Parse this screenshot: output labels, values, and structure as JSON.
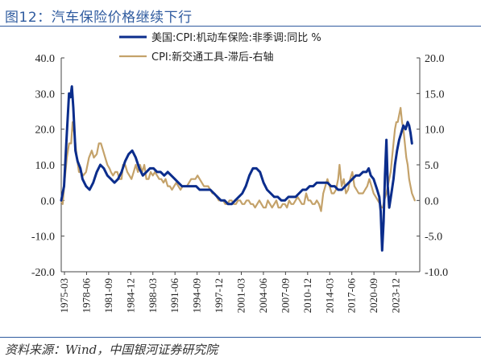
{
  "header": {
    "title": "图12：汽车保险价格继续下行"
  },
  "footer": {
    "source": "资料来源：Wind，中国银河证券研究院"
  },
  "colors": {
    "series1": "#0b2d8c",
    "series2": "#c4a26a",
    "accent": "#2f5b9f"
  },
  "chart_data": {
    "type": "line",
    "x_tick_labels": [
      "1975-03",
      "1978-06",
      "1981-09",
      "1984-12",
      "1988-03",
      "1991-06",
      "1994-09",
      "1997-12",
      "2001-03",
      "2004-06",
      "2007-09",
      "2010-12",
      "2014-03",
      "2017-06",
      "2020-09",
      "2023-12"
    ],
    "x_range": [
      1975.0,
      2025.5
    ],
    "y_left": {
      "range": [
        -20,
        40
      ],
      "ticks": [
        -20,
        -10,
        0,
        10,
        20,
        30,
        40
      ],
      "tick_labels": [
        "-20.0",
        "-10.0",
        "0.0",
        "10.0",
        "20.0",
        "30.0",
        "40.0"
      ]
    },
    "y_right": {
      "range": [
        -10,
        20
      ],
      "ticks": [
        -10,
        -5,
        0,
        5,
        10,
        15,
        20
      ],
      "tick_labels": [
        "-10.0",
        "-5.0",
        "0.0",
        "5.0",
        "10.0",
        "15.0",
        "20.0"
      ]
    },
    "grid": false,
    "legend_position": "top",
    "series": [
      {
        "name": "美国:CPI:机动车保险:非季调:同比 %",
        "axis": "left",
        "points": [
          [
            1975.0,
            0
          ],
          [
            1975.4,
            4
          ],
          [
            1975.8,
            19
          ],
          [
            1976.1,
            30
          ],
          [
            1976.3,
            29
          ],
          [
            1976.5,
            32
          ],
          [
            1976.7,
            26
          ],
          [
            1977.0,
            14
          ],
          [
            1977.3,
            11
          ],
          [
            1977.7,
            9
          ],
          [
            1978.0,
            6
          ],
          [
            1978.5,
            4
          ],
          [
            1979.0,
            3
          ],
          [
            1979.5,
            5
          ],
          [
            1980.0,
            8
          ],
          [
            1980.5,
            10
          ],
          [
            1981.0,
            9
          ],
          [
            1981.5,
            7
          ],
          [
            1982.0,
            6
          ],
          [
            1982.5,
            5
          ],
          [
            1983.0,
            6
          ],
          [
            1983.5,
            8
          ],
          [
            1984.0,
            11
          ],
          [
            1984.5,
            13
          ],
          [
            1985.0,
            14
          ],
          [
            1985.5,
            12
          ],
          [
            1986.0,
            9
          ],
          [
            1986.5,
            7
          ],
          [
            1987.0,
            8
          ],
          [
            1987.5,
            9
          ],
          [
            1988.0,
            9
          ],
          [
            1988.5,
            8
          ],
          [
            1989.0,
            8
          ],
          [
            1989.5,
            7
          ],
          [
            1990.0,
            8
          ],
          [
            1990.5,
            7
          ],
          [
            1991.0,
            6
          ],
          [
            1991.5,
            5
          ],
          [
            1992.0,
            4
          ],
          [
            1992.5,
            4
          ],
          [
            1993.0,
            4
          ],
          [
            1993.5,
            4
          ],
          [
            1994.0,
            4
          ],
          [
            1994.5,
            3
          ],
          [
            1995.0,
            3
          ],
          [
            1995.5,
            3
          ],
          [
            1996.0,
            3
          ],
          [
            1996.5,
            2
          ],
          [
            1997.0,
            1
          ],
          [
            1997.5,
            0
          ],
          [
            1998.0,
            0
          ],
          [
            1998.5,
            -1
          ],
          [
            1999.0,
            -1
          ],
          [
            1999.5,
            0
          ],
          [
            2000.0,
            1
          ],
          [
            2000.5,
            2
          ],
          [
            2001.0,
            4
          ],
          [
            2001.5,
            7
          ],
          [
            2002.0,
            9
          ],
          [
            2002.5,
            9
          ],
          [
            2003.0,
            8
          ],
          [
            2003.5,
            5
          ],
          [
            2004.0,
            3
          ],
          [
            2004.5,
            2
          ],
          [
            2005.0,
            1
          ],
          [
            2005.5,
            1
          ],
          [
            2006.0,
            0
          ],
          [
            2006.5,
            0
          ],
          [
            2007.0,
            1
          ],
          [
            2007.5,
            1
          ],
          [
            2008.0,
            1
          ],
          [
            2008.5,
            2
          ],
          [
            2009.0,
            3
          ],
          [
            2009.5,
            3
          ],
          [
            2010.0,
            4
          ],
          [
            2010.5,
            4
          ],
          [
            2011.0,
            5
          ],
          [
            2011.5,
            5
          ],
          [
            2012.0,
            5
          ],
          [
            2012.5,
            5
          ],
          [
            2013.0,
            4
          ],
          [
            2013.5,
            4
          ],
          [
            2014.0,
            3
          ],
          [
            2014.5,
            3
          ],
          [
            2015.0,
            4
          ],
          [
            2015.5,
            5
          ],
          [
            2016.0,
            6
          ],
          [
            2016.5,
            7
          ],
          [
            2017.0,
            7
          ],
          [
            2017.5,
            8
          ],
          [
            2018.0,
            8
          ],
          [
            2018.3,
            9
          ],
          [
            2018.6,
            7
          ],
          [
            2019.0,
            6
          ],
          [
            2019.5,
            3
          ],
          [
            2019.8,
            1
          ],
          [
            2020.0,
            -3
          ],
          [
            2020.2,
            -14
          ],
          [
            2020.4,
            -6
          ],
          [
            2020.6,
            7
          ],
          [
            2020.8,
            17
          ],
          [
            2021.0,
            4
          ],
          [
            2021.2,
            -2
          ],
          [
            2021.5,
            2
          ],
          [
            2021.8,
            6
          ],
          [
            2022.0,
            10
          ],
          [
            2022.3,
            14
          ],
          [
            2022.6,
            17
          ],
          [
            2022.9,
            19
          ],
          [
            2023.2,
            21
          ],
          [
            2023.5,
            20
          ],
          [
            2023.8,
            22
          ],
          [
            2024.0,
            21
          ],
          [
            2024.2,
            19
          ],
          [
            2024.4,
            16
          ]
        ]
      },
      {
        "name": "CPI:新交通工具-滞后-右轴",
        "axis": "right",
        "points": [
          [
            1975.0,
            0
          ],
          [
            1975.2,
            -0.5
          ],
          [
            1975.5,
            3
          ],
          [
            1975.8,
            6
          ],
          [
            1976.1,
            8
          ],
          [
            1976.4,
            8
          ],
          [
            1976.6,
            11
          ],
          [
            1976.9,
            9
          ],
          [
            1977.2,
            6
          ],
          [
            1977.5,
            4
          ],
          [
            1977.8,
            4
          ],
          [
            1978.1,
            3.5
          ],
          [
            1978.5,
            4
          ],
          [
            1978.9,
            6
          ],
          [
            1979.3,
            7
          ],
          [
            1979.6,
            6
          ],
          [
            1980.0,
            6.5
          ],
          [
            1980.3,
            8
          ],
          [
            1980.6,
            8
          ],
          [
            1980.9,
            7
          ],
          [
            1981.2,
            6
          ],
          [
            1981.5,
            5
          ],
          [
            1981.8,
            4.5
          ],
          [
            1982.0,
            4
          ],
          [
            1982.3,
            3.5
          ],
          [
            1982.6,
            4
          ],
          [
            1982.9,
            4
          ],
          [
            1983.2,
            3
          ],
          [
            1983.5,
            3
          ],
          [
            1983.7,
            5
          ],
          [
            1984.0,
            5
          ],
          [
            1984.3,
            4
          ],
          [
            1984.6,
            3.5
          ],
          [
            1984.9,
            3
          ],
          [
            1985.2,
            4
          ],
          [
            1985.5,
            5
          ],
          [
            1985.8,
            4
          ],
          [
            1986.1,
            5
          ],
          [
            1986.4,
            4
          ],
          [
            1986.7,
            5
          ],
          [
            1987.0,
            3
          ],
          [
            1987.3,
            3
          ],
          [
            1987.6,
            4
          ],
          [
            1987.9,
            3.5
          ],
          [
            1988.2,
            4
          ],
          [
            1988.5,
            3.5
          ],
          [
            1988.8,
            3
          ],
          [
            1989.1,
            3
          ],
          [
            1989.4,
            2.5
          ],
          [
            1989.7,
            3
          ],
          [
            1990.0,
            2
          ],
          [
            1990.3,
            2
          ],
          [
            1990.6,
            1.5
          ],
          [
            1990.9,
            2
          ],
          [
            1991.2,
            2.5
          ],
          [
            1991.5,
            2
          ],
          [
            1991.8,
            1.5
          ],
          [
            1992.1,
            2
          ],
          [
            1992.4,
            2
          ],
          [
            1992.7,
            2
          ],
          [
            1993.0,
            2.5
          ],
          [
            1993.3,
            3
          ],
          [
            1993.6,
            3
          ],
          [
            1993.9,
            3
          ],
          [
            1994.2,
            3.5
          ],
          [
            1994.5,
            3
          ],
          [
            1994.8,
            2.5
          ],
          [
            1995.1,
            2
          ],
          [
            1995.4,
            2
          ],
          [
            1995.7,
            2
          ],
          [
            1996.0,
            1.5
          ],
          [
            1996.3,
            1
          ],
          [
            1996.6,
            1
          ],
          [
            1996.9,
            0.5
          ],
          [
            1997.2,
            0
          ],
          [
            1997.5,
            0
          ],
          [
            1997.8,
            0
          ],
          [
            1998.1,
            -0.5
          ],
          [
            1998.4,
            -0.5
          ],
          [
            1998.7,
            0
          ],
          [
            1999.0,
            0
          ],
          [
            1999.3,
            -0.5
          ],
          [
            1999.6,
            -0.5
          ],
          [
            1999.9,
            0
          ],
          [
            2000.2,
            0
          ],
          [
            2000.5,
            -0.5
          ],
          [
            2000.8,
            -0.5
          ],
          [
            2001.1,
            0
          ],
          [
            2001.4,
            0
          ],
          [
            2001.7,
            -0.5
          ],
          [
            2002.0,
            -0.5
          ],
          [
            2002.3,
            -1
          ],
          [
            2002.6,
            -0.5
          ],
          [
            2002.9,
            0
          ],
          [
            2003.2,
            -0.5
          ],
          [
            2003.5,
            -1
          ],
          [
            2003.8,
            -1
          ],
          [
            2004.1,
            0
          ],
          [
            2004.4,
            -0.5
          ],
          [
            2004.7,
            -1
          ],
          [
            2005.0,
            -0.5
          ],
          [
            2005.3,
            0
          ],
          [
            2005.6,
            -1
          ],
          [
            2005.9,
            -1
          ],
          [
            2006.2,
            -0.5
          ],
          [
            2006.5,
            -0.5
          ],
          [
            2006.8,
            -1
          ],
          [
            2007.1,
            0
          ],
          [
            2007.4,
            -0.5
          ],
          [
            2007.7,
            -0.5
          ],
          [
            2008.0,
            0
          ],
          [
            2008.3,
            0.5
          ],
          [
            2008.6,
            0
          ],
          [
            2008.9,
            -0.5
          ],
          [
            2009.2,
            -0.5
          ],
          [
            2009.5,
            1
          ],
          [
            2009.8,
            0
          ],
          [
            2010.1,
            0
          ],
          [
            2010.4,
            -0.5
          ],
          [
            2010.7,
            -0.5
          ],
          [
            2011.0,
            0
          ],
          [
            2011.3,
            -0.5
          ],
          [
            2011.6,
            -1.5
          ],
          [
            2011.9,
            1
          ],
          [
            2012.2,
            2
          ],
          [
            2012.5,
            3
          ],
          [
            2012.8,
            2
          ],
          [
            2013.1,
            1
          ],
          [
            2013.4,
            1
          ],
          [
            2013.7,
            1.5
          ],
          [
            2014.0,
            3
          ],
          [
            2014.2,
            5
          ],
          [
            2014.5,
            2
          ],
          [
            2014.8,
            3
          ],
          [
            2015.1,
            1
          ],
          [
            2015.4,
            1.5
          ],
          [
            2015.7,
            3
          ],
          [
            2016.0,
            4
          ],
          [
            2016.3,
            2
          ],
          [
            2016.6,
            1.5
          ],
          [
            2016.9,
            1
          ],
          [
            2017.2,
            1
          ],
          [
            2017.5,
            1
          ],
          [
            2017.8,
            1.5
          ],
          [
            2018.1,
            2
          ],
          [
            2018.4,
            3
          ],
          [
            2018.7,
            2
          ],
          [
            2019.0,
            1
          ],
          [
            2019.3,
            0.5
          ],
          [
            2019.6,
            0
          ],
          [
            2019.9,
            -0.5
          ],
          [
            2020.1,
            -1
          ],
          [
            2020.3,
            -1
          ],
          [
            2020.5,
            0
          ],
          [
            2020.8,
            1
          ],
          [
            2021.0,
            2
          ],
          [
            2021.2,
            3
          ],
          [
            2021.4,
            4
          ],
          [
            2021.6,
            6
          ],
          [
            2021.8,
            8
          ],
          [
            2022.0,
            10
          ],
          [
            2022.2,
            11
          ],
          [
            2022.4,
            11
          ],
          [
            2022.6,
            12
          ],
          [
            2022.8,
            13
          ],
          [
            2023.0,
            11
          ],
          [
            2023.2,
            10
          ],
          [
            2023.4,
            8
          ],
          [
            2023.6,
            6
          ],
          [
            2023.8,
            5
          ],
          [
            2024.0,
            3
          ],
          [
            2024.2,
            2
          ],
          [
            2024.4,
            1
          ],
          [
            2024.6,
            0.5
          ],
          [
            2024.8,
            0
          ]
        ]
      }
    ]
  }
}
